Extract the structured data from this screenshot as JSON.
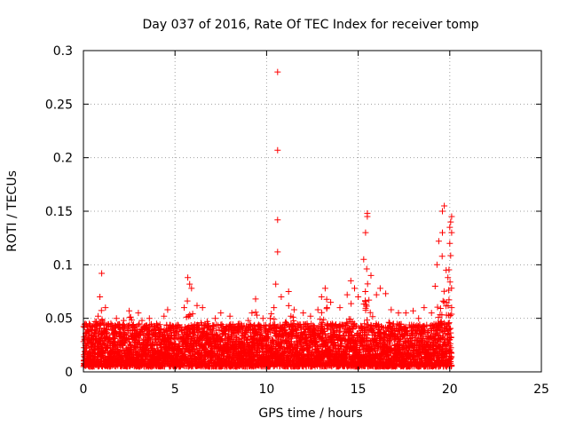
{
  "chart_data": {
    "type": "scatter",
    "title": "Day 037 of 2016, Rate Of TEC Index for receiver tomp",
    "xlabel": "GPS time / hours",
    "ylabel": "ROTI / TECUs",
    "xlim": [
      0,
      25
    ],
    "ylim": [
      0,
      0.3
    ],
    "grid": true,
    "x_ticks": [
      0,
      5,
      10,
      15,
      20,
      25
    ],
    "x_tick_labels": [
      "0",
      "5",
      "10",
      "15",
      "20",
      "25"
    ],
    "y_ticks": [
      0,
      0.05,
      0.1,
      0.15,
      0.2,
      0.25,
      0.3
    ],
    "y_tick_labels": [
      "0",
      "0.05",
      "0.1",
      "0.15",
      "0.2",
      "0.25",
      "0.3"
    ],
    "marker": "+",
    "marker_color": "#ff0000",
    "series": [
      {
        "name": "ROTI",
        "points": [
          [
            0.1,
            0.045
          ],
          [
            0.3,
            0.038
          ],
          [
            0.5,
            0.03
          ],
          [
            0.8,
            0.052
          ],
          [
            0.9,
            0.07
          ],
          [
            1.0,
            0.092
          ],
          [
            1.2,
            0.06
          ],
          [
            1.5,
            0.045
          ],
          [
            1.8,
            0.05
          ],
          [
            2.2,
            0.048
          ],
          [
            2.5,
            0.057
          ],
          [
            3.0,
            0.055
          ],
          [
            3.2,
            0.048
          ],
          [
            3.6,
            0.05
          ],
          [
            4.0,
            0.045
          ],
          [
            4.4,
            0.052
          ],
          [
            4.6,
            0.058
          ],
          [
            5.0,
            0.04
          ],
          [
            5.2,
            0.035
          ],
          [
            5.5,
            0.06
          ],
          [
            5.7,
            0.088
          ],
          [
            5.8,
            0.082
          ],
          [
            5.9,
            0.078
          ],
          [
            6.2,
            0.062
          ],
          [
            6.5,
            0.06
          ],
          [
            6.8,
            0.045
          ],
          [
            7.2,
            0.05
          ],
          [
            7.5,
            0.055
          ],
          [
            8.0,
            0.052
          ],
          [
            8.5,
            0.045
          ],
          [
            9.0,
            0.048
          ],
          [
            9.2,
            0.055
          ],
          [
            9.4,
            0.068
          ],
          [
            9.8,
            0.05
          ],
          [
            10.2,
            0.05
          ],
          [
            10.4,
            0.06
          ],
          [
            10.5,
            0.082
          ],
          [
            10.6,
            0.112
          ],
          [
            10.6,
            0.142
          ],
          [
            10.6,
            0.207
          ],
          [
            10.6,
            0.28
          ],
          [
            10.8,
            0.07
          ],
          [
            11.2,
            0.075
          ],
          [
            11.5,
            0.058
          ],
          [
            12.0,
            0.055
          ],
          [
            12.4,
            0.052
          ],
          [
            12.8,
            0.058
          ],
          [
            13.0,
            0.07
          ],
          [
            13.2,
            0.078
          ],
          [
            13.5,
            0.065
          ],
          [
            14.0,
            0.06
          ],
          [
            14.4,
            0.072
          ],
          [
            14.6,
            0.085
          ],
          [
            14.8,
            0.078
          ],
          [
            15.0,
            0.07
          ],
          [
            15.3,
            0.105
          ],
          [
            15.4,
            0.13
          ],
          [
            15.5,
            0.145
          ],
          [
            15.5,
            0.148
          ],
          [
            15.7,
            0.09
          ],
          [
            16.0,
            0.072
          ],
          [
            16.2,
            0.078
          ],
          [
            16.5,
            0.073
          ],
          [
            16.8,
            0.058
          ],
          [
            17.2,
            0.055
          ],
          [
            17.6,
            0.055
          ],
          [
            18.0,
            0.057
          ],
          [
            18.3,
            0.05
          ],
          [
            18.6,
            0.06
          ],
          [
            19.0,
            0.055
          ],
          [
            19.2,
            0.08
          ],
          [
            19.3,
            0.1
          ],
          [
            19.4,
            0.122
          ],
          [
            19.6,
            0.13
          ],
          [
            19.6,
            0.15
          ],
          [
            19.7,
            0.155
          ],
          [
            19.8,
            0.095
          ],
          [
            19.9,
            0.088
          ],
          [
            20.0,
            0.12
          ],
          [
            20.0,
            0.135
          ],
          [
            20.05,
            0.14
          ],
          [
            20.1,
            0.145
          ],
          [
            20.1,
            0.13
          ],
          [
            20.1,
            0.06
          ]
        ]
      }
    ],
    "dense_band": {
      "x_start": 0,
      "x_end": 20.1,
      "y_floor": 0.005,
      "typical_min": 0.01,
      "typical_max": 0.045,
      "bursts": [
        [
          0.9,
          0.07
        ],
        [
          2.5,
          0.057
        ],
        [
          4.6,
          0.058
        ],
        [
          5.8,
          0.082
        ],
        [
          6.5,
          0.06
        ],
        [
          9.4,
          0.068
        ],
        [
          10.5,
          0.082
        ],
        [
          11.2,
          0.075
        ],
        [
          13.2,
          0.078
        ],
        [
          14.6,
          0.085
        ],
        [
          15.5,
          0.13
        ],
        [
          16.5,
          0.073
        ],
        [
          19.6,
          0.13
        ],
        [
          20.0,
          0.135
        ]
      ]
    }
  }
}
